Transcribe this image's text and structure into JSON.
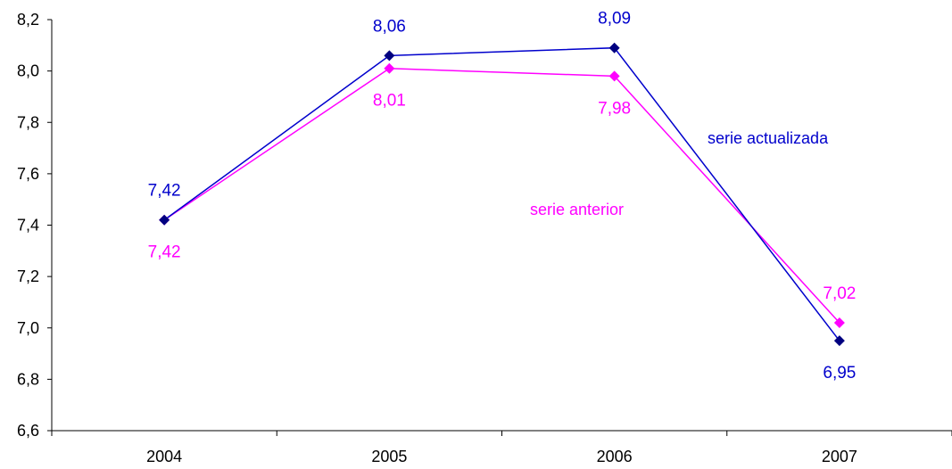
{
  "chart_data": {
    "type": "line",
    "categories": [
      "2004",
      "2005",
      "2006",
      "2007"
    ],
    "ylim": [
      6.6,
      8.2
    ],
    "yticks": [
      "6,6",
      "6,8",
      "7,0",
      "7,2",
      "7,4",
      "7,6",
      "7,8",
      "8,0",
      "8,2"
    ],
    "grid": false,
    "legend": "none",
    "series": [
      {
        "name": "serie actualizada",
        "color": "#0000cc",
        "marker_color": "#000080",
        "values": [
          7.42,
          8.06,
          8.09,
          6.95
        ],
        "labels": [
          "7,42",
          "8,06",
          "8,09",
          "6,95"
        ]
      },
      {
        "name": "serie anterior",
        "color": "#ff00ff",
        "marker_color": "#ff00ff",
        "values": [
          7.42,
          8.01,
          7.98,
          7.02
        ],
        "labels": [
          "7,42",
          "8,01",
          "7,98",
          "7,02"
        ]
      }
    ]
  }
}
